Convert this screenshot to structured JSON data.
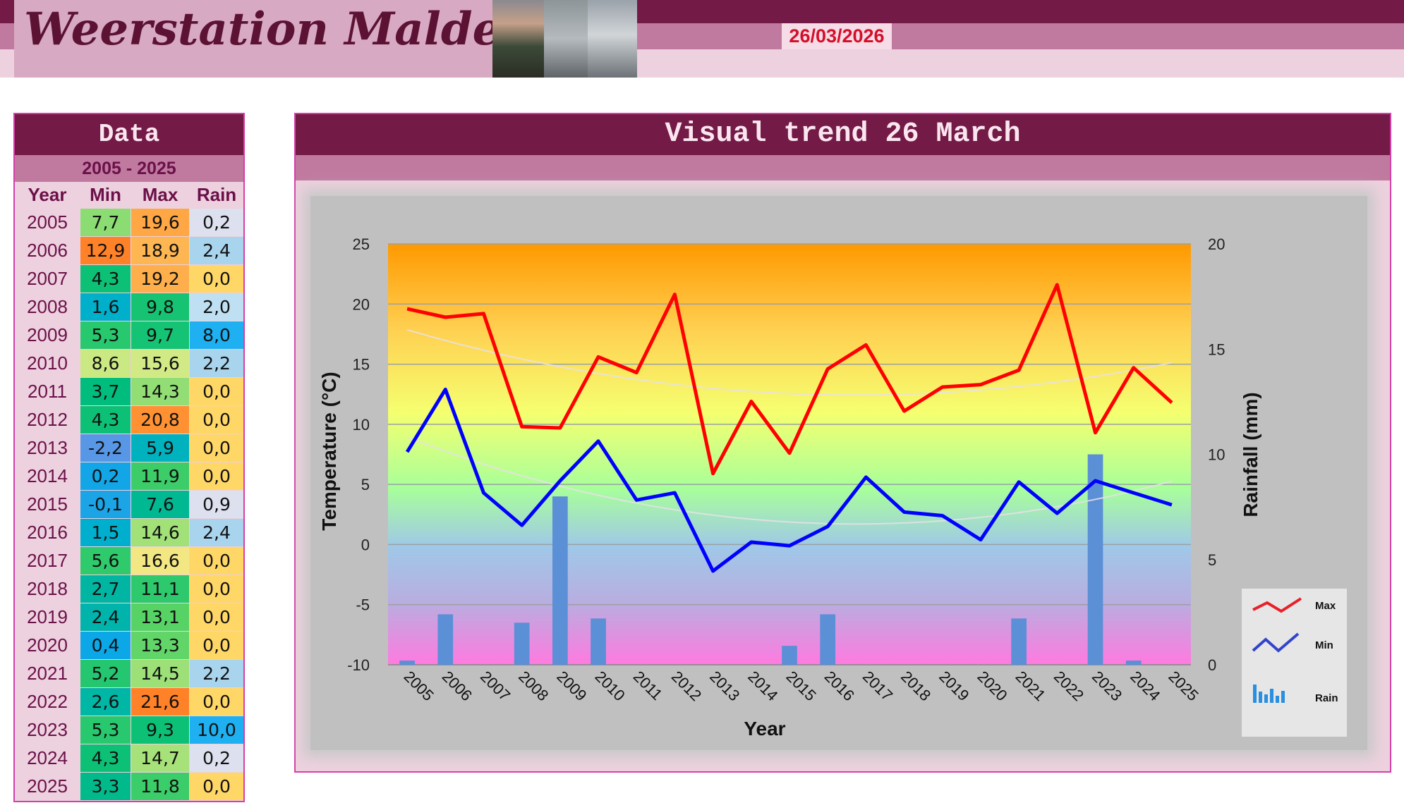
{
  "header": {
    "title": "Weerstation Malderen",
    "date": "26/03/2026"
  },
  "table": {
    "title": "Data",
    "range": "2005 - 2025",
    "columns": [
      "Year",
      "Min",
      "Max",
      "Rain"
    ],
    "rows": [
      {
        "year": "2005",
        "min": "7,7",
        "max": "19,6",
        "rain": "0,2"
      },
      {
        "year": "2006",
        "min": "12,9",
        "max": "18,9",
        "rain": "2,4"
      },
      {
        "year": "2007",
        "min": "4,3",
        "max": "19,2",
        "rain": "0,0"
      },
      {
        "year": "2008",
        "min": "1,6",
        "max": "9,8",
        "rain": "2,0"
      },
      {
        "year": "2009",
        "min": "5,3",
        "max": "9,7",
        "rain": "8,0"
      },
      {
        "year": "2010",
        "min": "8,6",
        "max": "15,6",
        "rain": "2,2"
      },
      {
        "year": "2011",
        "min": "3,7",
        "max": "14,3",
        "rain": "0,0"
      },
      {
        "year": "2012",
        "min": "4,3",
        "max": "20,8",
        "rain": "0,0"
      },
      {
        "year": "2013",
        "min": "-2,2",
        "max": "5,9",
        "rain": "0,0"
      },
      {
        "year": "2014",
        "min": "0,2",
        "max": "11,9",
        "rain": "0,0"
      },
      {
        "year": "2015",
        "min": "-0,1",
        "max": "7,6",
        "rain": "0,9"
      },
      {
        "year": "2016",
        "min": "1,5",
        "max": "14,6",
        "rain": "2,4"
      },
      {
        "year": "2017",
        "min": "5,6",
        "max": "16,6",
        "rain": "0,0"
      },
      {
        "year": "2018",
        "min": "2,7",
        "max": "11,1",
        "rain": "0,0"
      },
      {
        "year": "2019",
        "min": "2,4",
        "max": "13,1",
        "rain": "0,0"
      },
      {
        "year": "2020",
        "min": "0,4",
        "max": "13,3",
        "rain": "0,0"
      },
      {
        "year": "2021",
        "min": "5,2",
        "max": "14,5",
        "rain": "2,2"
      },
      {
        "year": "2022",
        "min": "2,6",
        "max": "21,6",
        "rain": "0,0"
      },
      {
        "year": "2023",
        "min": "5,3",
        "max": "9,3",
        "rain": "10,0"
      },
      {
        "year": "2024",
        "min": "4,3",
        "max": "14,7",
        "rain": "0,2"
      },
      {
        "year": "2025",
        "min": "3,3",
        "max": "11,8",
        "rain": "0,0"
      }
    ]
  },
  "panel": {
    "title": "Visual trend 26 March"
  },
  "chart_data": {
    "type": "line",
    "categories": [
      "2005",
      "2006",
      "2007",
      "2008",
      "2009",
      "2010",
      "2011",
      "2012",
      "2013",
      "2014",
      "2015",
      "2016",
      "2017",
      "2018",
      "2019",
      "2020",
      "2021",
      "2022",
      "2023",
      "2024",
      "2025"
    ],
    "series": [
      {
        "name": "Max",
        "type": "line",
        "axis": "left",
        "color": "#ff0000",
        "values": [
          19.6,
          18.9,
          19.2,
          9.8,
          9.7,
          15.6,
          14.3,
          20.8,
          5.9,
          11.9,
          7.6,
          14.6,
          16.6,
          11.1,
          13.1,
          13.3,
          14.5,
          21.6,
          9.3,
          14.7,
          11.8
        ]
      },
      {
        "name": "Min",
        "type": "line",
        "axis": "left",
        "color": "#0000ff",
        "values": [
          7.7,
          12.9,
          4.3,
          1.6,
          5.3,
          8.6,
          3.7,
          4.3,
          -2.2,
          0.2,
          -0.1,
          1.5,
          5.6,
          2.7,
          2.4,
          0.4,
          5.2,
          2.6,
          5.3,
          4.3,
          3.3
        ]
      },
      {
        "name": "Rain",
        "type": "bar",
        "axis": "right",
        "color": "#5b8fd6",
        "values": [
          0.2,
          2.4,
          0.0,
          2.0,
          8.0,
          2.2,
          0.0,
          0.0,
          0.0,
          0.0,
          0.9,
          2.4,
          0.0,
          0.0,
          0.0,
          0.0,
          2.2,
          0.0,
          10.0,
          0.2,
          0.0
        ]
      }
    ],
    "xlabel": "Year",
    "ylabel": "Temperature (°C)",
    "y2label": "Rainfall (mm)",
    "ylim": [
      -10,
      25
    ],
    "y2lim": [
      0,
      20
    ],
    "yticks": [
      -10,
      -5,
      0,
      5,
      10,
      15,
      20,
      25
    ],
    "y2ticks": [
      0,
      5,
      10,
      15,
      20
    ],
    "trendlines": true,
    "grid": true,
    "legend_position": "bottom-right"
  },
  "colors": {
    "header_dark": "#731a46",
    "header_mid": "#c07a9f",
    "header_light": "#edd1de",
    "accent_border": "#d53fa8",
    "date_text": "#d40f2a"
  }
}
